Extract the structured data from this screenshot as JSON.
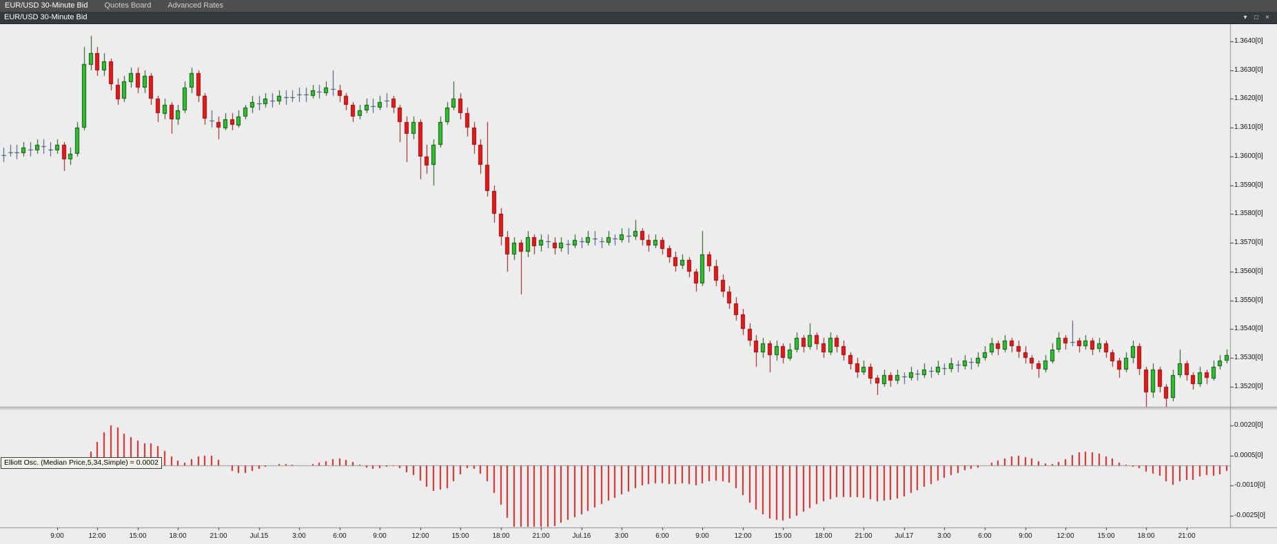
{
  "window": {
    "menu_bar": {
      "items": [
        {
          "label": "EUR/USD 30-Minute Bid",
          "active": true
        },
        {
          "label": "Quotes Board",
          "active": false
        },
        {
          "label": "Advanced Rates",
          "active": false
        }
      ]
    },
    "title_bar": {
      "title": "EUR/USD 30-Minute Bid",
      "controls": [
        {
          "name": "window-menu",
          "glyph": "▾"
        },
        {
          "name": "restore",
          "glyph": "□"
        },
        {
          "name": "close",
          "glyph": "×"
        }
      ]
    }
  },
  "chart_data": {
    "type": "candlestick",
    "title": "EUR/USD 30-Minute Bid",
    "symbol": "EUR/USD",
    "timeframe": "30-Minute",
    "price_type": "Bid",
    "grid": false,
    "legend_position": "left-middle-of-indicator-panel",
    "price_axis": {
      "max": 1.3646,
      "min": 1.3513,
      "ticks": [
        {
          "text": "1.3640[0]",
          "value": 1.364
        },
        {
          "text": "1.3630[0]",
          "value": 1.363
        },
        {
          "text": "1.3620[0]",
          "value": 1.362
        },
        {
          "text": "1.3610[0]",
          "value": 1.361
        },
        {
          "text": "1.3600[0]",
          "value": 1.36
        },
        {
          "text": "1.3590[0]",
          "value": 1.359
        },
        {
          "text": "1.3580[0]",
          "value": 1.358
        },
        {
          "text": "1.3570[0]",
          "value": 1.357
        },
        {
          "text": "1.3560[0]",
          "value": 1.356
        },
        {
          "text": "1.3550[0]",
          "value": 1.355
        },
        {
          "text": "1.3540[0]",
          "value": 1.354
        },
        {
          "text": "1.3530[0]",
          "value": 1.353
        },
        {
          "text": "1.3520[0]",
          "value": 1.352
        }
      ]
    },
    "time_axis": {
      "labels": [
        {
          "text": "9:00",
          "bar": 8
        },
        {
          "text": "12:00",
          "bar": 14
        },
        {
          "text": "15:00",
          "bar": 20
        },
        {
          "text": "18:00",
          "bar": 26
        },
        {
          "text": "21:00",
          "bar": 32
        },
        {
          "text": "Jul.15",
          "bar": 38
        },
        {
          "text": "3:00",
          "bar": 44
        },
        {
          "text": "6:00",
          "bar": 50
        },
        {
          "text": "9:00",
          "bar": 56
        },
        {
          "text": "12:00",
          "bar": 62
        },
        {
          "text": "15:00",
          "bar": 68
        },
        {
          "text": "18:00",
          "bar": 74
        },
        {
          "text": "21:00",
          "bar": 80
        },
        {
          "text": "Jul.16",
          "bar": 86
        },
        {
          "text": "3:00",
          "bar": 92
        },
        {
          "text": "6:00",
          "bar": 98
        },
        {
          "text": "9:00",
          "bar": 104
        },
        {
          "text": "12:00",
          "bar": 110
        },
        {
          "text": "15:00",
          "bar": 116
        },
        {
          "text": "18:00",
          "bar": 122
        },
        {
          "text": "21:00",
          "bar": 128
        },
        {
          "text": "Jul.17",
          "bar": 134
        },
        {
          "text": "3:00",
          "bar": 140
        },
        {
          "text": "6:00",
          "bar": 146
        },
        {
          "text": "9:00",
          "bar": 152
        },
        {
          "text": "12:00",
          "bar": 158
        },
        {
          "text": "15:00",
          "bar": 164
        },
        {
          "text": "18:00",
          "bar": 170
        },
        {
          "text": "21:00",
          "bar": 176
        }
      ]
    },
    "doji_threshold": 0.0001,
    "candles": [
      [
        1.36,
        1.3603,
        1.3598,
        1.3601
      ],
      [
        1.3601,
        1.3604,
        1.36,
        1.3602
      ],
      [
        1.3602,
        1.3604,
        1.3599,
        1.3601
      ],
      [
        1.3601,
        1.3605,
        1.36,
        1.3603
      ],
      [
        1.3603,
        1.3605,
        1.36,
        1.3602
      ],
      [
        1.3602,
        1.3606,
        1.3601,
        1.3604
      ],
      [
        1.3604,
        1.3606,
        1.3601,
        1.3603
      ],
      [
        1.3603,
        1.3605,
        1.36,
        1.3602
      ],
      [
        1.3602,
        1.3606,
        1.3601,
        1.3604
      ],
      [
        1.3604,
        1.3605,
        1.3595,
        1.3599
      ],
      [
        1.3599,
        1.3603,
        1.3597,
        1.3601
      ],
      [
        1.3601,
        1.3612,
        1.36,
        1.361
      ],
      [
        1.361,
        1.3638,
        1.3609,
        1.3632
      ],
      [
        1.3632,
        1.3642,
        1.363,
        1.3636
      ],
      [
        1.3636,
        1.3638,
        1.3628,
        1.363
      ],
      [
        1.363,
        1.3636,
        1.3628,
        1.3633
      ],
      [
        1.3633,
        1.3634,
        1.3623,
        1.3625
      ],
      [
        1.3625,
        1.3627,
        1.3618,
        1.362
      ],
      [
        1.362,
        1.3628,
        1.3619,
        1.3626
      ],
      [
        1.3626,
        1.3631,
        1.3624,
        1.3629
      ],
      [
        1.3629,
        1.3631,
        1.3622,
        1.3624
      ],
      [
        1.3624,
        1.363,
        1.3622,
        1.3628
      ],
      [
        1.3628,
        1.3629,
        1.3618,
        1.362
      ],
      [
        1.362,
        1.3621,
        1.3612,
        1.3615
      ],
      [
        1.3615,
        1.362,
        1.3613,
        1.3618
      ],
      [
        1.3618,
        1.3619,
        1.3608,
        1.3613
      ],
      [
        1.3613,
        1.3618,
        1.3611,
        1.3616
      ],
      [
        1.3616,
        1.3626,
        1.3615,
        1.3624
      ],
      [
        1.3624,
        1.3631,
        1.3622,
        1.3629
      ],
      [
        1.3629,
        1.363,
        1.3619,
        1.3621
      ],
      [
        1.3621,
        1.3622,
        1.3611,
        1.3613
      ],
      [
        1.3613,
        1.3616,
        1.361,
        1.3612
      ],
      [
        1.3612,
        1.3614,
        1.3606,
        1.361
      ],
      [
        1.361,
        1.3615,
        1.3609,
        1.3613
      ],
      [
        1.3613,
        1.3615,
        1.3609,
        1.3611
      ],
      [
        1.3611,
        1.3616,
        1.361,
        1.3614
      ],
      [
        1.3614,
        1.3618,
        1.3613,
        1.3617
      ],
      [
        1.3617,
        1.3621,
        1.3615,
        1.3619
      ],
      [
        1.3619,
        1.3621,
        1.3616,
        1.3618
      ],
      [
        1.3618,
        1.3622,
        1.3617,
        1.362
      ],
      [
        1.362,
        1.3622,
        1.3617,
        1.3619
      ],
      [
        1.3619,
        1.3623,
        1.3618,
        1.3621
      ],
      [
        1.3621,
        1.3623,
        1.3618,
        1.362
      ],
      [
        1.362,
        1.3623,
        1.3619,
        1.3621
      ],
      [
        1.3621,
        1.3624,
        1.3619,
        1.3622
      ],
      [
        1.3622,
        1.3624,
        1.3619,
        1.3621
      ],
      [
        1.3621,
        1.3625,
        1.362,
        1.3623
      ],
      [
        1.3623,
        1.3625,
        1.362,
        1.3622
      ],
      [
        1.3622,
        1.3626,
        1.3621,
        1.3624
      ],
      [
        1.3624,
        1.363,
        1.3621,
        1.3623
      ],
      [
        1.3623,
        1.3625,
        1.3619,
        1.3621
      ],
      [
        1.3621,
        1.3622,
        1.3616,
        1.3618
      ],
      [
        1.3618,
        1.3619,
        1.3612,
        1.3614
      ],
      [
        1.3614,
        1.3618,
        1.3613,
        1.3616
      ],
      [
        1.3616,
        1.362,
        1.3615,
        1.3618
      ],
      [
        1.3618,
        1.362,
        1.3615,
        1.3617
      ],
      [
        1.3617,
        1.3621,
        1.3616,
        1.3619
      ],
      [
        1.3619,
        1.3622,
        1.3617,
        1.362
      ],
      [
        1.362,
        1.3621,
        1.3615,
        1.3617
      ],
      [
        1.3617,
        1.3618,
        1.3605,
        1.3612
      ],
      [
        1.3612,
        1.3614,
        1.3598,
        1.3608
      ],
      [
        1.3608,
        1.3614,
        1.3606,
        1.3612
      ],
      [
        1.3612,
        1.3613,
        1.3592,
        1.36
      ],
      [
        1.36,
        1.3604,
        1.3594,
        1.3597
      ],
      [
        1.3597,
        1.3606,
        1.359,
        1.3604
      ],
      [
        1.3604,
        1.3614,
        1.3603,
        1.3612
      ],
      [
        1.3612,
        1.3619,
        1.3611,
        1.3617
      ],
      [
        1.3617,
        1.3626,
        1.3616,
        1.362
      ],
      [
        1.362,
        1.3622,
        1.3613,
        1.3615
      ],
      [
        1.3615,
        1.3617,
        1.3607,
        1.361
      ],
      [
        1.361,
        1.3612,
        1.3601,
        1.3604
      ],
      [
        1.3604,
        1.3606,
        1.3594,
        1.3597
      ],
      [
        1.3597,
        1.3612,
        1.3586,
        1.3588
      ],
      [
        1.3588,
        1.359,
        1.3577,
        1.358
      ],
      [
        1.358,
        1.3582,
        1.3569,
        1.3572
      ],
      [
        1.3572,
        1.3574,
        1.356,
        1.3566
      ],
      [
        1.3566,
        1.3572,
        1.3564,
        1.357
      ],
      [
        1.357,
        1.3571,
        1.3552,
        1.3567
      ],
      [
        1.3567,
        1.3574,
        1.3565,
        1.3572
      ],
      [
        1.3572,
        1.3573,
        1.3566,
        1.3569
      ],
      [
        1.3569,
        1.3573,
        1.3567,
        1.3571
      ],
      [
        1.3571,
        1.3573,
        1.3568,
        1.357
      ],
      [
        1.357,
        1.3572,
        1.3566,
        1.3568
      ],
      [
        1.3568,
        1.3572,
        1.3567,
        1.357
      ],
      [
        1.357,
        1.3571,
        1.3566,
        1.3569
      ],
      [
        1.3569,
        1.3573,
        1.3568,
        1.3571
      ],
      [
        1.3571,
        1.3572,
        1.3568,
        1.357
      ],
      [
        1.357,
        1.3574,
        1.3569,
        1.3572
      ],
      [
        1.3572,
        1.3574,
        1.3569,
        1.3571
      ],
      [
        1.3571,
        1.3572,
        1.3568,
        1.357
      ],
      [
        1.357,
        1.3574,
        1.3569,
        1.3572
      ],
      [
        1.3572,
        1.3573,
        1.3569,
        1.3571
      ],
      [
        1.3571,
        1.3575,
        1.357,
        1.3573
      ],
      [
        1.3573,
        1.3575,
        1.357,
        1.3572
      ],
      [
        1.3572,
        1.3578,
        1.3571,
        1.3574
      ],
      [
        1.3574,
        1.3575,
        1.3569,
        1.3571
      ],
      [
        1.3571,
        1.3573,
        1.3567,
        1.3569
      ],
      [
        1.3569,
        1.3573,
        1.3568,
        1.3571
      ],
      [
        1.3571,
        1.3572,
        1.3566,
        1.3568
      ],
      [
        1.3568,
        1.3569,
        1.3563,
        1.3565
      ],
      [
        1.3565,
        1.3567,
        1.356,
        1.3562
      ],
      [
        1.3562,
        1.3566,
        1.3561,
        1.3564
      ],
      [
        1.3564,
        1.3565,
        1.3558,
        1.356
      ],
      [
        1.356,
        1.3561,
        1.3553,
        1.3556
      ],
      [
        1.3556,
        1.3574,
        1.3555,
        1.3566
      ],
      [
        1.3566,
        1.3567,
        1.356,
        1.3562
      ],
      [
        1.3562,
        1.3564,
        1.3555,
        1.3557
      ],
      [
        1.3557,
        1.3559,
        1.3551,
        1.3553
      ],
      [
        1.3553,
        1.3555,
        1.3547,
        1.3549
      ],
      [
        1.3549,
        1.3551,
        1.3543,
        1.3545
      ],
      [
        1.3545,
        1.3547,
        1.3538,
        1.354
      ],
      [
        1.354,
        1.3542,
        1.3534,
        1.3536
      ],
      [
        1.3536,
        1.3538,
        1.3527,
        1.3532
      ],
      [
        1.3532,
        1.3537,
        1.353,
        1.3535
      ],
      [
        1.3535,
        1.3536,
        1.3525,
        1.3531
      ],
      [
        1.3531,
        1.3536,
        1.3529,
        1.3534
      ],
      [
        1.3534,
        1.3535,
        1.3528,
        1.353
      ],
      [
        1.353,
        1.3535,
        1.3529,
        1.3533
      ],
      [
        1.3533,
        1.3539,
        1.3532,
        1.3537
      ],
      [
        1.3537,
        1.3538,
        1.3532,
        1.3534
      ],
      [
        1.3534,
        1.3542,
        1.3533,
        1.3538
      ],
      [
        1.3538,
        1.3539,
        1.3533,
        1.3535
      ],
      [
        1.3535,
        1.3537,
        1.353,
        1.3532
      ],
      [
        1.3532,
        1.3539,
        1.3531,
        1.3537
      ],
      [
        1.3537,
        1.3538,
        1.3532,
        1.3534
      ],
      [
        1.3534,
        1.3536,
        1.3529,
        1.3531
      ],
      [
        1.3531,
        1.3532,
        1.3526,
        1.3528
      ],
      [
        1.3528,
        1.353,
        1.3523,
        1.3525
      ],
      [
        1.3525,
        1.3529,
        1.3524,
        1.3527
      ],
      [
        1.3527,
        1.3528,
        1.3521,
        1.3523
      ],
      [
        1.3523,
        1.3524,
        1.3517,
        1.3521
      ],
      [
        1.3521,
        1.3526,
        1.352,
        1.3524
      ],
      [
        1.3524,
        1.3525,
        1.352,
        1.3522
      ],
      [
        1.3522,
        1.3526,
        1.3521,
        1.3524
      ],
      [
        1.3524,
        1.3525,
        1.3521,
        1.3523
      ],
      [
        1.3523,
        1.3527,
        1.3522,
        1.3525
      ],
      [
        1.3525,
        1.3526,
        1.3522,
        1.3524
      ],
      [
        1.3524,
        1.3528,
        1.3523,
        1.3526
      ],
      [
        1.3526,
        1.3527,
        1.3523,
        1.3525
      ],
      [
        1.3525,
        1.3529,
        1.3524,
        1.3527
      ],
      [
        1.3527,
        1.3528,
        1.3524,
        1.3526
      ],
      [
        1.3526,
        1.353,
        1.3525,
        1.3528
      ],
      [
        1.3528,
        1.3529,
        1.3525,
        1.3527
      ],
      [
        1.3527,
        1.3531,
        1.3526,
        1.3529
      ],
      [
        1.3529,
        1.353,
        1.3526,
        1.3528
      ],
      [
        1.3528,
        1.3532,
        1.3527,
        1.353
      ],
      [
        1.353,
        1.3534,
        1.3529,
        1.3532
      ],
      [
        1.3532,
        1.3537,
        1.3531,
        1.3535
      ],
      [
        1.3535,
        1.3536,
        1.3531,
        1.3533
      ],
      [
        1.3533,
        1.3538,
        1.3532,
        1.3536
      ],
      [
        1.3536,
        1.3537,
        1.3532,
        1.3534
      ],
      [
        1.3534,
        1.3536,
        1.353,
        1.3532
      ],
      [
        1.3532,
        1.3534,
        1.3528,
        1.353
      ],
      [
        1.353,
        1.3531,
        1.3526,
        1.3528
      ],
      [
        1.3528,
        1.3529,
        1.3523,
        1.3526
      ],
      [
        1.3526,
        1.3531,
        1.3525,
        1.3529
      ],
      [
        1.3529,
        1.3535,
        1.3528,
        1.3533
      ],
      [
        1.3533,
        1.3539,
        1.3532,
        1.3537
      ],
      [
        1.3537,
        1.3538,
        1.3533,
        1.3535
      ],
      [
        1.3535,
        1.3543,
        1.3534,
        1.3536
      ],
      [
        1.3536,
        1.3537,
        1.3532,
        1.3534
      ],
      [
        1.3534,
        1.3538,
        1.3533,
        1.3536
      ],
      [
        1.3536,
        1.3537,
        1.3531,
        1.3533
      ],
      [
        1.3533,
        1.3537,
        1.3532,
        1.3535
      ],
      [
        1.3535,
        1.3536,
        1.353,
        1.3532
      ],
      [
        1.3532,
        1.3533,
        1.3527,
        1.3529
      ],
      [
        1.3529,
        1.353,
        1.3523,
        1.3526
      ],
      [
        1.3526,
        1.3532,
        1.3525,
        1.353
      ],
      [
        1.353,
        1.3536,
        1.3528,
        1.3534
      ],
      [
        1.3534,
        1.3535,
        1.3524,
        1.3526
      ],
      [
        1.3526,
        1.3527,
        1.3513,
        1.3518
      ],
      [
        1.3518,
        1.3528,
        1.3516,
        1.3526
      ],
      [
        1.3526,
        1.3527,
        1.3518,
        1.352
      ],
      [
        1.352,
        1.3521,
        1.3512,
        1.3516
      ],
      [
        1.3516,
        1.3526,
        1.3515,
        1.3524
      ],
      [
        1.3524,
        1.3533,
        1.3523,
        1.3528
      ],
      [
        1.3528,
        1.3529,
        1.3522,
        1.3524
      ],
      [
        1.3524,
        1.3525,
        1.3519,
        1.3521
      ],
      [
        1.3521,
        1.3527,
        1.352,
        1.3525
      ],
      [
        1.3525,
        1.3526,
        1.3521,
        1.3523
      ],
      [
        1.3523,
        1.3529,
        1.3522,
        1.3527
      ],
      [
        1.3527,
        1.3531,
        1.3526,
        1.3529
      ],
      [
        1.3529,
        1.3533,
        1.3528,
        1.3531
      ]
    ],
    "indicator": {
      "type": "histogram",
      "name": "Elliott Oscillator",
      "label": "Elliott Osc. (Median Price,5,34,Simple) = 0.0002",
      "source": "Median Price",
      "fast_period": 5,
      "slow_period": 34,
      "method": "Simple",
      "last_value": 0.0002,
      "max": 0.0028,
      "min": -0.0031,
      "ticks": [
        {
          "text": "0.0020[0]",
          "value": 0.002
        },
        {
          "text": "0.0005[0]",
          "value": 0.0005
        },
        {
          "text": "-0.0010[0]",
          "value": -0.001
        },
        {
          "text": "-0.0025[0]",
          "value": -0.0025
        }
      ]
    },
    "colors": {
      "background": "#ededed",
      "up_fill": "#2fc12f",
      "up_border": "#0d4d0d",
      "down_fill": "#e21a1a",
      "down_border": "#8f0c0c",
      "doji": "#3b4a70",
      "histogram": "#cc2626",
      "axis_text": "#141414",
      "axis_line": "#8f8f8f",
      "splitter": "#cdcdcd",
      "zero_line": "#9a9a9a"
    }
  }
}
